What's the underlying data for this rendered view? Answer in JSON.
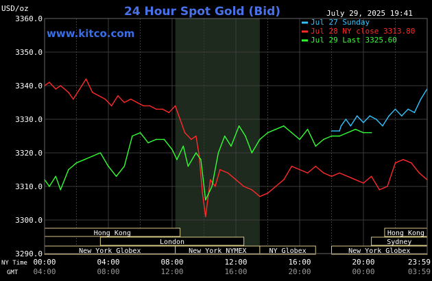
{
  "header": {
    "y_unit": "USD/oz",
    "title": "24 Hour Spot Gold (Bid)",
    "timestamp": "July 29, 2025 19:41",
    "site": "www.kitco.com",
    "title_color": "#4a72e8",
    "site_color": "#3a6ee8"
  },
  "legend": [
    {
      "label": "Jul 27 Sunday",
      "color": "#33c4ff"
    },
    {
      "label": "Jul 28 NY close 3313.80",
      "color": "#ff2a2a"
    },
    {
      "label": "Jul 29 Last 3325.60",
      "color": "#33ff33"
    }
  ],
  "x_axis": {
    "row1_label": "NY Time",
    "row2_label": "GMT",
    "ny_ticks": [
      "00:00",
      "04:00",
      "08:00",
      "12:00",
      "16:00",
      "20:00",
      "23:59"
    ],
    "gmt_ticks": [
      "04:00",
      "08:00",
      "12:00",
      "16:00",
      "20:00",
      "00:00",
      "03:59"
    ]
  },
  "y_axis": {
    "ticks": [
      "3360.0",
      "3350.0",
      "3340.0",
      "3330.0",
      "3320.0",
      "3310.0",
      "3300.0",
      "3290.0"
    ]
  },
  "sessions": [
    {
      "label": "Hong Kong",
      "row": 0,
      "start": 0,
      "end": 8.5
    },
    {
      "label": "Hong Kong",
      "row": 0,
      "start": 21.33,
      "end": 24
    },
    {
      "label": "London",
      "row": 1,
      "start": 3.5,
      "end": 12.5
    },
    {
      "label": "Sydney",
      "row": 1,
      "start": 20.5,
      "end": 24
    },
    {
      "label": "New York Globex",
      "row": 2,
      "start": 0,
      "end": 8.2
    },
    {
      "label": "New York NYMEX",
      "row": 2,
      "start": 8.2,
      "end": 13.5
    },
    {
      "label": "NY Globex",
      "row": 2,
      "start": 13.5,
      "end": 17.0
    },
    {
      "label": "New York Globex",
      "row": 2,
      "start": 18.0,
      "end": 24
    }
  ],
  "chart_data": {
    "type": "line",
    "title": "24 Hour Spot Gold (Bid)",
    "xlabel": "NY Time",
    "ylabel": "USD/oz",
    "xlim": [
      0,
      24
    ],
    "ylim": [
      3290,
      3360
    ],
    "highlight_range": [
      8.2,
      13.5
    ],
    "grid": true,
    "series": [
      {
        "name": "Jul 28 NY close 3313.80",
        "color": "#ff2a2a",
        "x": [
          0,
          0.3,
          0.7,
          1,
          1.5,
          1.8,
          2.2,
          2.6,
          3.0,
          3.4,
          3.8,
          4.2,
          4.6,
          5.0,
          5.4,
          5.8,
          6.2,
          6.6,
          7.0,
          7.4,
          7.8,
          8.2,
          8.5,
          8.8,
          9.2,
          9.5,
          9.7,
          9.9,
          10.1,
          10.4,
          10.7,
          11.0,
          11.5,
          12.0,
          12.5,
          13.0,
          13.5,
          14.0,
          14.5,
          15.0,
          15.5,
          16.0,
          16.5,
          17.0,
          17.5,
          18.0,
          18.5,
          19.0,
          19.5,
          20.0,
          20.5,
          21.0,
          21.5,
          22.0,
          22.5,
          23.0,
          23.5,
          23.99
        ],
        "y": [
          3340,
          3341,
          3339,
          3340,
          3338,
          3336,
          3339,
          3342,
          3338,
          3337,
          3336,
          3334,
          3337,
          3335,
          3336,
          3335,
          3334,
          3334,
          3333,
          3333,
          3332,
          3334,
          3330,
          3326,
          3324,
          3325,
          3319,
          3308,
          3301,
          3312,
          3310,
          3315,
          3314,
          3312,
          3310,
          3309,
          3307,
          3308,
          3310,
          3312,
          3316,
          3315,
          3314,
          3316,
          3314,
          3313,
          3314,
          3313,
          3312,
          3311,
          3313,
          3309,
          3310,
          3317,
          3318,
          3317,
          3314,
          3312
        ]
      },
      {
        "name": "Jul 29 Last 3325.60",
        "color": "#33ff33",
        "x": [
          0,
          0.3,
          0.7,
          1.0,
          1.5,
          2.0,
          2.5,
          3.0,
          3.5,
          4.0,
          4.5,
          5.0,
          5.5,
          6.0,
          6.5,
          7.0,
          7.5,
          8.0,
          8.3,
          8.7,
          9.0,
          9.5,
          9.8,
          10.1,
          10.5,
          10.9,
          11.3,
          11.7,
          12.2,
          12.6,
          13.0,
          13.5,
          14.0,
          14.5,
          15.0,
          15.5,
          16.0,
          16.5,
          17.0,
          17.5,
          18.0,
          18.5,
          19.0,
          19.5,
          20.0,
          20.5
        ],
        "y": [
          3312,
          3310,
          3313,
          3309,
          3315,
          3317,
          3318,
          3319,
          3320,
          3316,
          3313,
          3316,
          3325,
          3326,
          3323,
          3324,
          3324,
          3321,
          3318,
          3322,
          3316,
          3320,
          3318,
          3306,
          3310,
          3320,
          3325,
          3322,
          3328,
          3325,
          3320,
          3324,
          3326,
          3327,
          3328,
          3326,
          3324,
          3327,
          3322,
          3324,
          3325,
          3325,
          3326,
          3327,
          3326,
          3326
        ]
      },
      {
        "name": "Jul 27 Sunday",
        "color": "#33c4ff",
        "x": [
          18.0,
          18.5,
          18.6,
          18.9,
          19.2,
          19.6,
          20.0,
          20.4,
          20.8,
          21.2,
          21.6,
          22.0,
          22.4,
          22.8,
          23.2,
          23.6,
          23.99
        ],
        "y": [
          3326.5,
          3326.5,
          3328,
          3330,
          3328,
          3331,
          3329,
          3331,
          3330,
          3328,
          3331,
          3333,
          3331,
          3333,
          3332,
          3336,
          3339
        ]
      }
    ]
  }
}
